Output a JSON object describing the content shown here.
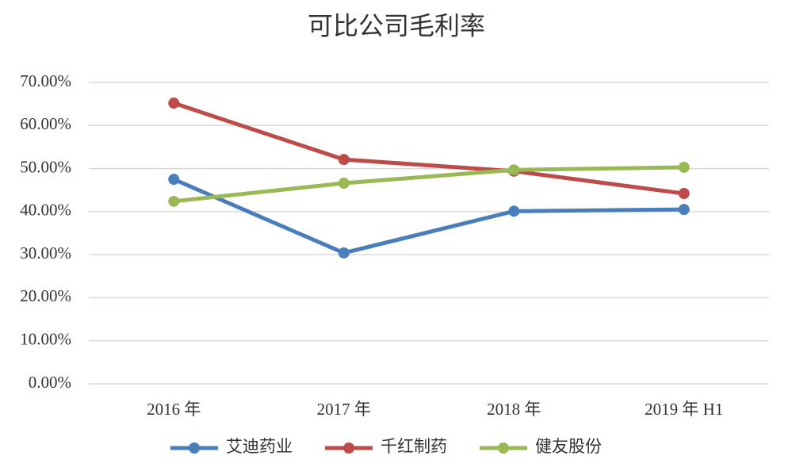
{
  "chart_data": {
    "type": "line",
    "title": "可比公司毛利率",
    "categories": [
      "2016 年",
      "2017 年",
      "2018 年",
      "2019 年 H1"
    ],
    "series": [
      {
        "name": "艾迪药业",
        "color": "#4a7ebb",
        "values": [
          47.5,
          30.4,
          40.1,
          40.5
        ]
      },
      {
        "name": "千红制药",
        "color": "#be4b48",
        "values": [
          65.2,
          52.1,
          49.4,
          44.2
        ]
      },
      {
        "name": "健友股份",
        "color": "#98b954",
        "values": [
          42.4,
          46.6,
          49.7,
          50.3
        ]
      }
    ],
    "ylim": [
      0,
      70
    ],
    "yticks": [
      {
        "value": 0,
        "label": "0.00%"
      },
      {
        "value": 10,
        "label": "10.00%"
      },
      {
        "value": 20,
        "label": "20.00%"
      },
      {
        "value": 30,
        "label": "30.00%"
      },
      {
        "value": 40,
        "label": "40.00%"
      },
      {
        "value": 50,
        "label": "50.00%"
      },
      {
        "value": 60,
        "label": "60.00%"
      },
      {
        "value": 70,
        "label": "70.00%"
      }
    ],
    "grid": true,
    "legend": "bottom"
  }
}
